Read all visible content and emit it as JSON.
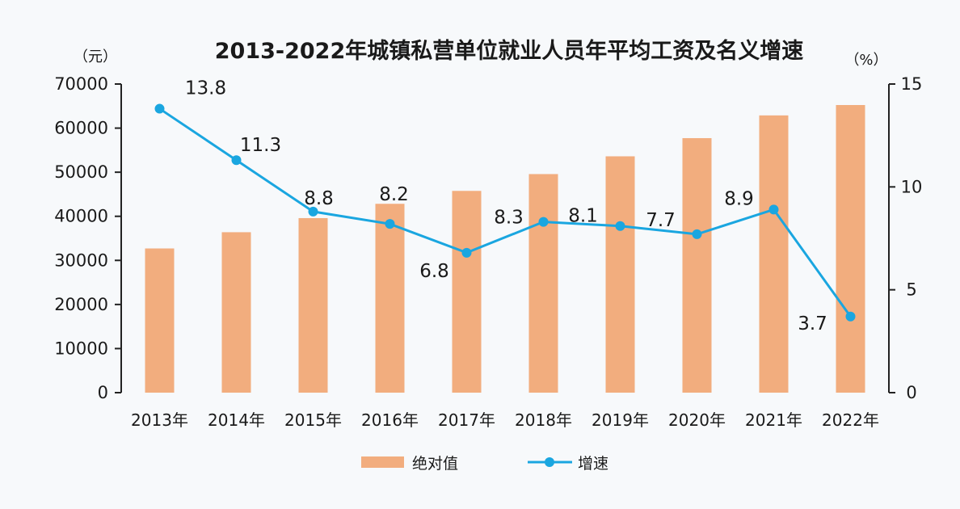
{
  "chart_data": {
    "type": "bar+line",
    "title": "2013-2022年城镇私营单位就业人员年平均工资及名义增速",
    "left_unit": "（元）",
    "right_unit": "（%）",
    "categories": [
      "2013年",
      "2014年",
      "2015年",
      "2016年",
      "2017年",
      "2018年",
      "2019年",
      "2020年",
      "2021年",
      "2022年"
    ],
    "left_ylim": [
      0,
      70000
    ],
    "left_ticks": [
      "0",
      "10000",
      "20000",
      "30000",
      "40000",
      "50000",
      "60000",
      "70000"
    ],
    "right_ylim": [
      0,
      15
    ],
    "right_ticks": [
      "0",
      "5",
      "10",
      "15"
    ],
    "grid": false,
    "legend_position": "bottom",
    "series": [
      {
        "name": "绝对值",
        "type": "bar",
        "axis": "left",
        "color": "#f2ad7e",
        "values": [
          32706,
          36390,
          39589,
          42833,
          45761,
          49575,
          53604,
          57727,
          62884,
          65237
        ]
      },
      {
        "name": "增速",
        "type": "line",
        "axis": "right",
        "color": "#1aa6e0",
        "values": [
          13.8,
          11.3,
          8.8,
          8.2,
          6.8,
          8.3,
          8.1,
          7.7,
          8.9,
          3.7
        ],
        "labels": [
          "13.8",
          "11.3",
          "8.8",
          "8.2",
          "6.8",
          "8.3",
          "8.1",
          "7.7",
          "8.9",
          "3.7"
        ]
      }
    ]
  }
}
